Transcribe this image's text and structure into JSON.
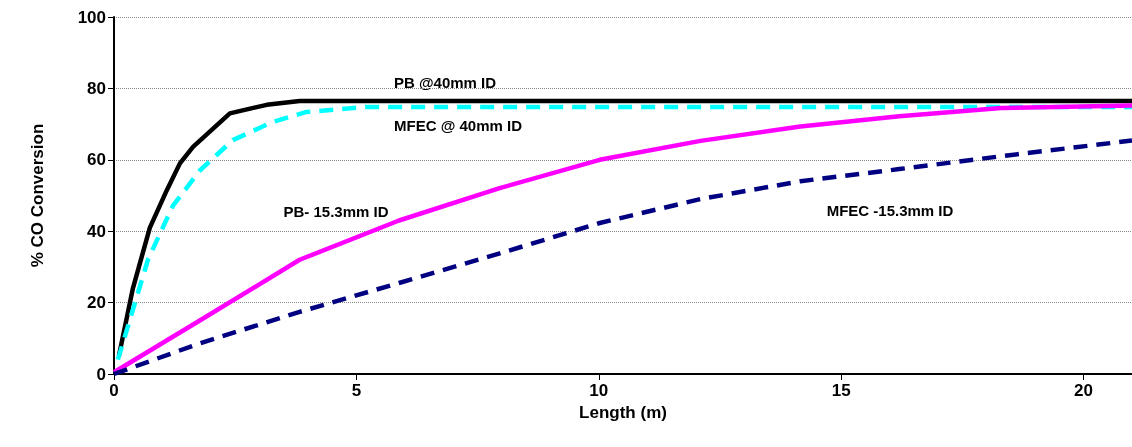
{
  "chart_data": {
    "type": "line",
    "xlabel": "Length (m)",
    "ylabel": "% CO Conversion",
    "xlim": [
      0,
      21
    ],
    "xticks": [
      0,
      5,
      10,
      15,
      20
    ],
    "ylim": [
      0,
      100
    ],
    "yticks": [
      0,
      20,
      40,
      60,
      80,
      100
    ],
    "grid": "y",
    "marker": "none",
    "series": [
      {
        "name": "PB @40mm ID",
        "color": "#000000",
        "line_style": "solid",
        "x": [
          0.1,
          0.39,
          0.74,
          1.09,
          1.36,
          1.63,
          2.39,
          3.15,
          3.83,
          21
        ],
        "values": [
          5,
          24,
          41,
          51.5,
          59,
          63.6,
          73,
          75.4,
          76.5,
          76.5
        ]
      },
      {
        "name": "MFEC @ 40mm ID",
        "color": "#00ffff",
        "line_style": "dashed",
        "x": [
          0.08,
          0.7,
          1.21,
          1.77,
          2.45,
          3.27,
          3.97,
          5.2,
          21
        ],
        "values": [
          4,
          32,
          47,
          57,
          65.5,
          70.6,
          73.4,
          74.8,
          74.8
        ]
      },
      {
        "name": "PB- 15.3mm ID",
        "color": "#ff00ff",
        "line_style": "solid",
        "x": [
          0,
          1.77,
          3.83,
          5.88,
          7.94,
          10.02,
          12.1,
          14.16,
          16.2,
          18.3,
          21
        ],
        "values": [
          0.5,
          15,
          32,
          43,
          52,
          60,
          65.3,
          69.3,
          72.2,
          74.5,
          75.2
        ]
      },
      {
        "name": "MFEC -15.3mm ID",
        "color": "#000080",
        "line_style": "dashed",
        "x": [
          0,
          1.77,
          3.83,
          5.88,
          7.94,
          10.02,
          12.1,
          14.16,
          16.2,
          18.3,
          21
        ],
        "values": [
          0,
          8.6,
          17.4,
          25.5,
          33.7,
          42.3,
          49,
          54,
          57.4,
          61,
          65.4
        ]
      }
    ]
  }
}
